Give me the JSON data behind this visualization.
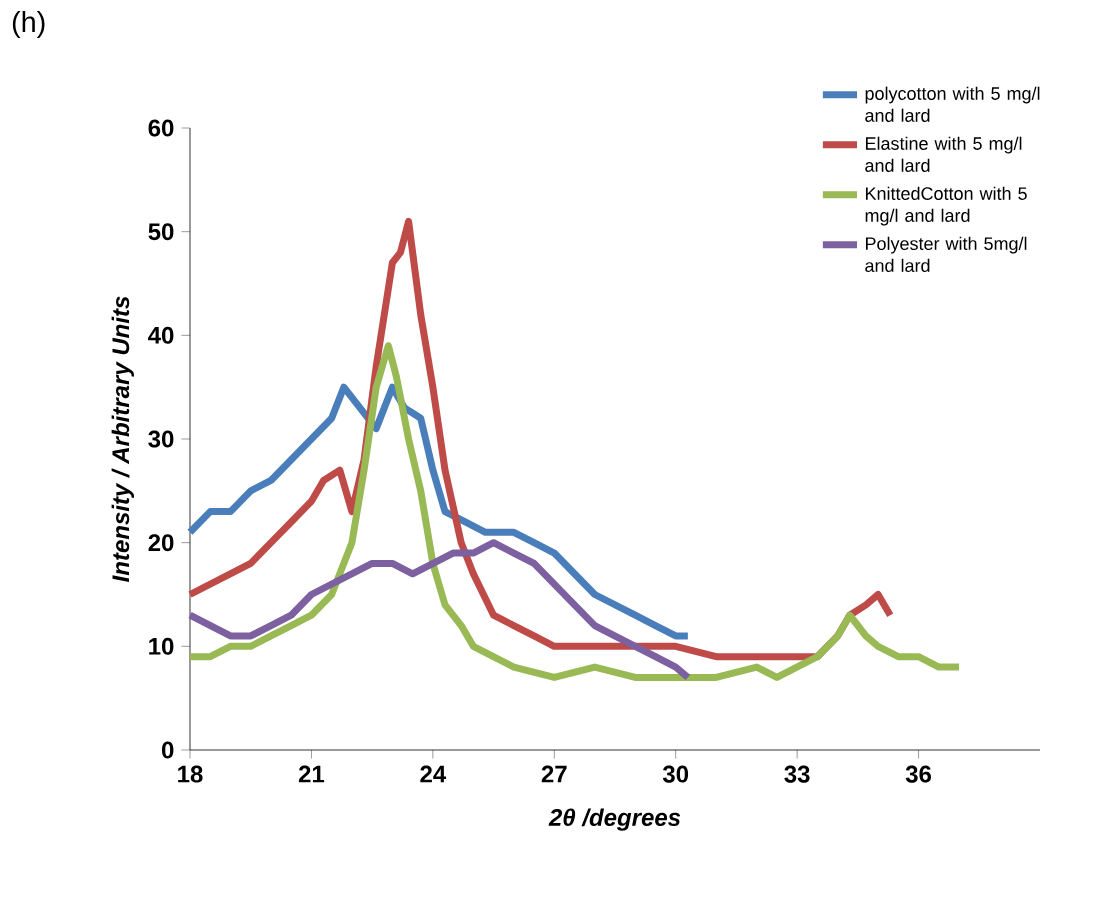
{
  "chart_data": {
    "type": "line",
    "xlabel": "2θ /degrees",
    "ylabel": "Intensity / Arbitrary Units",
    "annotations": [
      "(h)"
    ],
    "xlim": [
      18,
      39
    ],
    "xticks": [
      18,
      21,
      24,
      27,
      30,
      33,
      36
    ],
    "ylim": [
      0,
      60
    ],
    "yticks": [
      0,
      10,
      20,
      30,
      40,
      50,
      60
    ],
    "grid": false,
    "legend": "top right",
    "marker": "none",
    "line_style": "solid",
    "series": [
      {
        "name": "polycotton with 5 mg/l and lard",
        "color": "#4a7ebb",
        "x": [
          18,
          18.5,
          19,
          19.5,
          20,
          20.5,
          21,
          21.5,
          21.8,
          22.2,
          22.6,
          23,
          23.3,
          23.7,
          24,
          24.3,
          24.8,
          25.3,
          26,
          26.5,
          27,
          27.5,
          28,
          28.5,
          29,
          29.5,
          30,
          30.3
        ],
        "values": [
          21,
          23,
          23,
          25,
          26,
          28,
          30,
          32,
          35,
          33,
          31,
          35,
          33,
          32,
          27,
          23,
          22,
          21,
          21,
          20,
          19,
          17,
          15,
          14,
          13,
          12,
          11,
          11
        ]
      },
      {
        "name": "Elastine with 5 mg/l and lard",
        "color": "#be4b48",
        "x": [
          18,
          18.5,
          19,
          19.5,
          20,
          20.5,
          21,
          21.3,
          21.7,
          22,
          22.3,
          22.6,
          23,
          23.2,
          23.4,
          23.7,
          24,
          24.3,
          24.7,
          25,
          25.5,
          26,
          26.5,
          27,
          28,
          29,
          30,
          31,
          32,
          33,
          33.5,
          34,
          34.3,
          34.7,
          35,
          35.3
        ],
        "values": [
          15,
          16,
          17,
          18,
          20,
          22,
          24,
          26,
          27,
          23,
          28,
          37,
          47,
          48,
          51,
          42,
          35,
          27,
          20,
          17,
          13,
          12,
          11,
          10,
          10,
          10,
          10,
          9,
          9,
          9,
          9,
          11,
          13,
          14,
          15,
          13
        ]
      },
      {
        "name": "KnittedCotton with 5 mg/l and lard",
        "color": "#98b954",
        "x": [
          18,
          18.5,
          19,
          19.5,
          20,
          20.5,
          21,
          21.5,
          22,
          22.3,
          22.6,
          22.9,
          23.1,
          23.4,
          23.7,
          24,
          24.3,
          24.7,
          25,
          25.5,
          26,
          27,
          28,
          29,
          30,
          31,
          32,
          32.5,
          33,
          33.5,
          34,
          34.3,
          34.7,
          35,
          35.5,
          36,
          36.5,
          37
        ],
        "values": [
          9,
          9,
          10,
          10,
          11,
          12,
          13,
          15,
          20,
          27,
          35,
          39,
          36,
          30,
          25,
          18,
          14,
          12,
          10,
          9,
          8,
          7,
          8,
          7,
          7,
          7,
          8,
          7,
          8,
          9,
          11,
          13,
          11,
          10,
          9,
          9,
          8,
          8
        ]
      },
      {
        "name": "Polyester with 5mg/l and lard",
        "color": "#7d60a0",
        "x": [
          18,
          18.5,
          19,
          19.5,
          20,
          20.5,
          21,
          21.5,
          22,
          22.5,
          23,
          23.5,
          24,
          24.5,
          25,
          25.5,
          26,
          26.5,
          27,
          27.5,
          28,
          28.5,
          29,
          29.5,
          30,
          30.3
        ],
        "values": [
          13,
          12,
          11,
          11,
          12,
          13,
          15,
          16,
          17,
          18,
          18,
          17,
          18,
          19,
          19,
          20,
          19,
          18,
          16,
          14,
          12,
          11,
          10,
          9,
          8,
          7
        ]
      }
    ]
  }
}
